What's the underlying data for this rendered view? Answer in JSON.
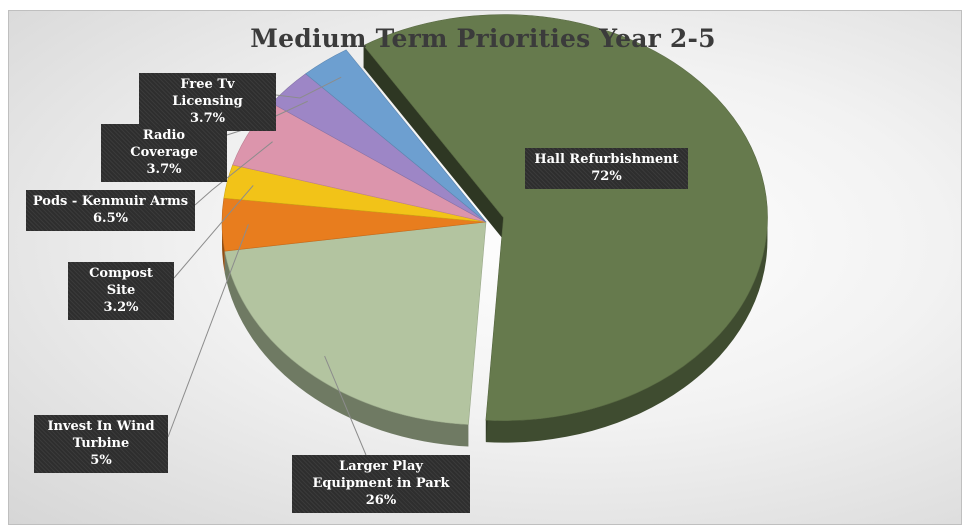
{
  "chart_data": {
    "type": "pie",
    "title": "Medium Term Priorities Year 2-5",
    "slices": [
      {
        "label": "Hall Refurbishment",
        "value_text": "72%",
        "value": 72,
        "color": "#667a4d"
      },
      {
        "label": "Larger Play Equipment in Park",
        "value_text": "26%",
        "value": 26,
        "color": "#b3c4a0"
      },
      {
        "label": "Invest In Wind Turbine",
        "value_text": "5%",
        "value": 5,
        "color": "#e87d1e"
      },
      {
        "label": "Compost Site",
        "value_text": "3.2%",
        "value": 3.2,
        "color": "#f2c318"
      },
      {
        "label": "Pods - Kenmuir Arms",
        "value_text": "6.5%",
        "value": 6.5,
        "color": "#dc95ac"
      },
      {
        "label": "Radio Coverage",
        "value_text": "3.7%",
        "value": 3.7,
        "color": "#9d86c6"
      },
      {
        "label": "Free Tv Licensing",
        "value_text": "3.7%",
        "value": 3.7,
        "color": "#6d9fd0"
      }
    ],
    "legend": "none",
    "grid": false
  }
}
